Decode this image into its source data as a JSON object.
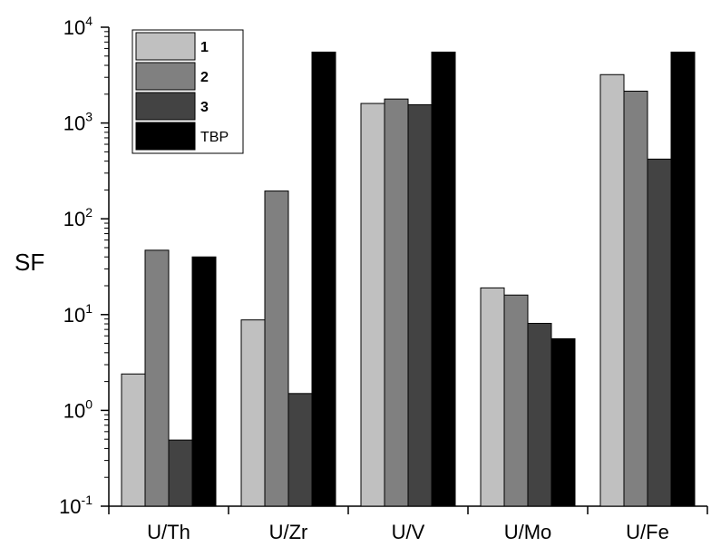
{
  "chart_data": {
    "type": "bar",
    "yscale": "log",
    "ylabel": "SF",
    "xlabel": "",
    "ylim": [
      0.1,
      10000
    ],
    "y_ticks": [
      {
        "base": "10",
        "exp": "-1",
        "value": 0.1
      },
      {
        "base": "10",
        "exp": "0",
        "value": 1
      },
      {
        "base": "10",
        "exp": "1",
        "value": 10
      },
      {
        "base": "10",
        "exp": "2",
        "value": 100
      },
      {
        "base": "10",
        "exp": "3",
        "value": 1000
      },
      {
        "base": "10",
        "exp": "4",
        "value": 10000
      }
    ],
    "categories": [
      "U/Th",
      "U/Zr",
      "U/V",
      "U/Mo",
      "U/Fe"
    ],
    "series": [
      {
        "name": "1",
        "color": "#c0c0c0",
        "values": [
          2.4,
          8.8,
          1600,
          19,
          3200
        ]
      },
      {
        "name": "2",
        "color": "#808080",
        "values": [
          47,
          195,
          1780,
          16,
          2150
        ]
      },
      {
        "name": "3",
        "color": "#434343",
        "values": [
          0.49,
          1.5,
          1550,
          8.1,
          420
        ]
      },
      {
        "name": "TBP",
        "color": "#000000",
        "values": [
          40,
          5500,
          5500,
          5.6,
          5500
        ]
      }
    ],
    "legend_position": "top-left",
    "grid": false
  }
}
